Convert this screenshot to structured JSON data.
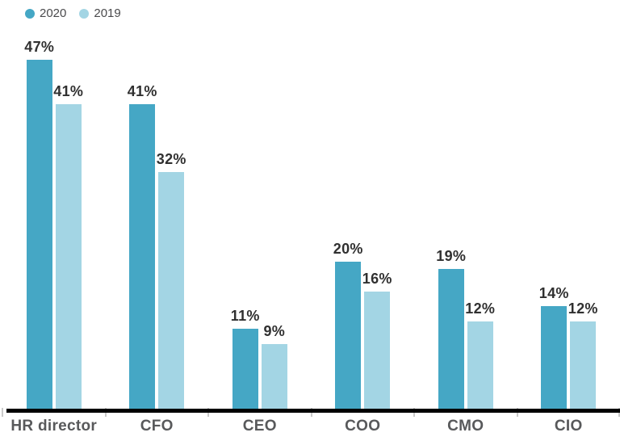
{
  "colors": {
    "series": [
      "#45a7c5",
      "#a3d5e4"
    ],
    "value_label": "#303030",
    "category_label": "#58595b",
    "axis_line": "#000000",
    "tick": "#c9c9c9",
    "legend_text": "#4a4a4c"
  },
  "chart_data": {
    "type": "bar",
    "title": "",
    "xlabel": "",
    "ylabel": "",
    "categories": [
      "HR director",
      "CFO",
      "CEO",
      "COO",
      "CMO",
      "CIO"
    ],
    "series": [
      {
        "name": "2020",
        "values": [
          47,
          41,
          11,
          20,
          19,
          14
        ]
      },
      {
        "name": "2019",
        "values": [
          41,
          32,
          9,
          16,
          12,
          12
        ]
      }
    ],
    "value_suffix": "%",
    "ylim": [
      0,
      50
    ],
    "grid": false,
    "legend_position": "top-left",
    "value_labels_shown": true,
    "y_axis_shown": false
  }
}
